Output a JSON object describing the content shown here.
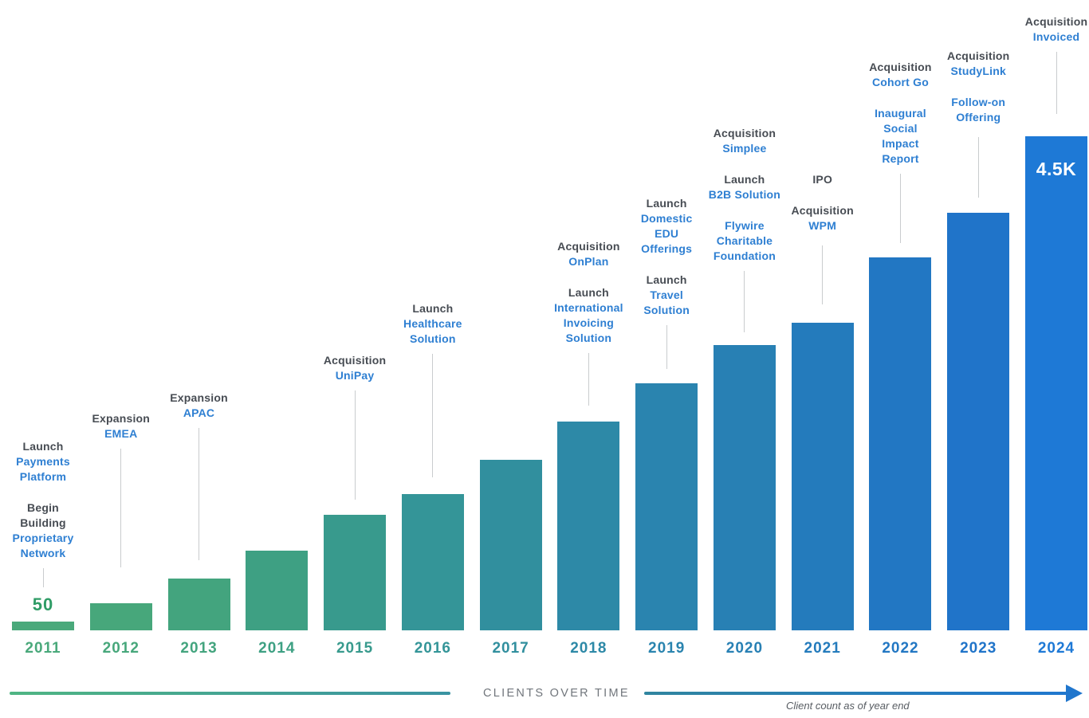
{
  "chart_data": {
    "type": "bar",
    "title": "",
    "axis_caption": "CLIENTS OVER TIME",
    "footnote": "Client count as of year end",
    "categories": [
      "2011",
      "2012",
      "2013",
      "2014",
      "2015",
      "2016",
      "2017",
      "2018",
      "2019",
      "2020",
      "2021",
      "2022",
      "2023",
      "2024"
    ],
    "values": [
      50,
      250,
      475,
      725,
      1050,
      1240,
      1550,
      1900,
      2250,
      2600,
      2800,
      3400,
      3800,
      4500
    ],
    "values_note": "Only 2011 (50) and 2024 (4.5K) are labeled on the chart; intermediate values estimated from bar heights",
    "visible_value_labels": {
      "2011": "50",
      "2024": "4.5K"
    },
    "ylim": [
      0,
      4500
    ],
    "grid": false,
    "legend": false,
    "bar_colors": [
      "#4aa97b",
      "#47a77b",
      "#43a47e",
      "#3ea083",
      "#389a8d",
      "#349598",
      "#318f9e",
      "#2d89a7",
      "#2a84af",
      "#2880b4",
      "#247bbc",
      "#2277c3",
      "#2074c9",
      "#1e79d6"
    ]
  },
  "columns": [
    {
      "year": "2011",
      "value_label": {
        "text": "50",
        "position": "above-bar"
      },
      "blocks": [
        [
          {
            "t": "Launch",
            "c": "dark"
          },
          {
            "t": "Payments",
            "c": "blue"
          },
          {
            "t": "Platform",
            "c": "blue"
          }
        ],
        [
          {
            "t": "Begin",
            "c": "dark"
          },
          {
            "t": "Building",
            "c": "dark"
          },
          {
            "t": "Proprietary",
            "c": "blue"
          },
          {
            "t": "Network",
            "c": "blue"
          }
        ]
      ]
    },
    {
      "year": "2012",
      "blocks": [
        [
          {
            "t": "Expansion",
            "c": "dark"
          },
          {
            "t": "EMEA",
            "c": "blue"
          }
        ]
      ]
    },
    {
      "year": "2013",
      "blocks": [
        [
          {
            "t": "Expansion",
            "c": "dark"
          },
          {
            "t": "APAC",
            "c": "blue"
          }
        ]
      ]
    },
    {
      "year": "2014",
      "blocks": []
    },
    {
      "year": "2015",
      "blocks": [
        [
          {
            "t": "Acquisition",
            "c": "dark"
          },
          {
            "t": "UniPay",
            "c": "blue"
          }
        ]
      ]
    },
    {
      "year": "2016",
      "blocks": [
        [
          {
            "t": "Launch",
            "c": "dark"
          },
          {
            "t": "Healthcare",
            "c": "blue"
          },
          {
            "t": "Solution",
            "c": "blue"
          }
        ]
      ]
    },
    {
      "year": "2017",
      "blocks": []
    },
    {
      "year": "2018",
      "blocks": [
        [
          {
            "t": "Acquisition",
            "c": "dark"
          },
          {
            "t": "OnPlan",
            "c": "blue"
          }
        ],
        [
          {
            "t": "Launch",
            "c": "dark"
          },
          {
            "t": "International",
            "c": "blue"
          },
          {
            "t": "Invoicing",
            "c": "blue"
          },
          {
            "t": "Solution",
            "c": "blue"
          }
        ]
      ]
    },
    {
      "year": "2019",
      "blocks": [
        [
          {
            "t": "Launch",
            "c": "dark"
          },
          {
            "t": "Domestic",
            "c": "blue"
          },
          {
            "t": "EDU",
            "c": "blue"
          },
          {
            "t": "Offerings",
            "c": "blue"
          }
        ],
        [
          {
            "t": "Launch",
            "c": "dark"
          },
          {
            "t": "Travel",
            "c": "blue"
          },
          {
            "t": "Solution",
            "c": "blue"
          }
        ]
      ]
    },
    {
      "year": "2020",
      "blocks": [
        [
          {
            "t": "Acquisition",
            "c": "dark"
          },
          {
            "t": "Simplee",
            "c": "blue"
          }
        ],
        [
          {
            "t": "Launch",
            "c": "dark"
          },
          {
            "t": "B2B Solution",
            "c": "blue"
          }
        ],
        [
          {
            "t": "Flywire",
            "c": "blue"
          },
          {
            "t": "Charitable",
            "c": "blue"
          },
          {
            "t": "Foundation",
            "c": "blue"
          }
        ]
      ]
    },
    {
      "year": "2021",
      "blocks": [
        [
          {
            "t": "IPO",
            "c": "dark"
          }
        ],
        [
          {
            "t": "Acquisition",
            "c": "dark"
          },
          {
            "t": "WPM",
            "c": "blue"
          }
        ]
      ]
    },
    {
      "year": "2022",
      "blocks": [
        [
          {
            "t": "Acquisition",
            "c": "dark"
          },
          {
            "t": "Cohort Go",
            "c": "blue"
          }
        ],
        [
          {
            "t": "Inaugural",
            "c": "blue"
          },
          {
            "t": "Social",
            "c": "blue"
          },
          {
            "t": "Impact",
            "c": "blue"
          },
          {
            "t": "Report",
            "c": "blue"
          }
        ]
      ]
    },
    {
      "year": "2023",
      "blocks": [
        [
          {
            "t": "Acquisition",
            "c": "dark"
          },
          {
            "t": "StudyLink",
            "c": "blue"
          }
        ],
        [
          {
            "t": "Follow-on",
            "c": "blue"
          },
          {
            "t": "Offering",
            "c": "blue"
          }
        ]
      ]
    },
    {
      "year": "2024",
      "value_label": {
        "text": "4.5K",
        "position": "inside-bar"
      },
      "blocks": [
        [
          {
            "t": "Acquisition",
            "c": "dark"
          },
          {
            "t": "Invoiced",
            "c": "blue"
          }
        ]
      ]
    }
  ],
  "footer": {
    "axis_label": "CLIENTS OVER TIME",
    "note": "Client count as of year end"
  },
  "colors": {
    "background": "#ffffff",
    "milestone_dark": "#474c53",
    "milestone_blue": "#2e7fd2",
    "connector_gray": "#c9ccce",
    "value_green": "#2f9c66",
    "value_white": "#ffffff",
    "axis_label_gray": "#71767c",
    "footnote_gray": "#575c62",
    "left_line_start": "#4fb583",
    "left_line_end": "#3a93a2",
    "arrow_start": "#30859f",
    "arrow_end": "#1f77cf",
    "arrow_head": "#2076cd"
  }
}
